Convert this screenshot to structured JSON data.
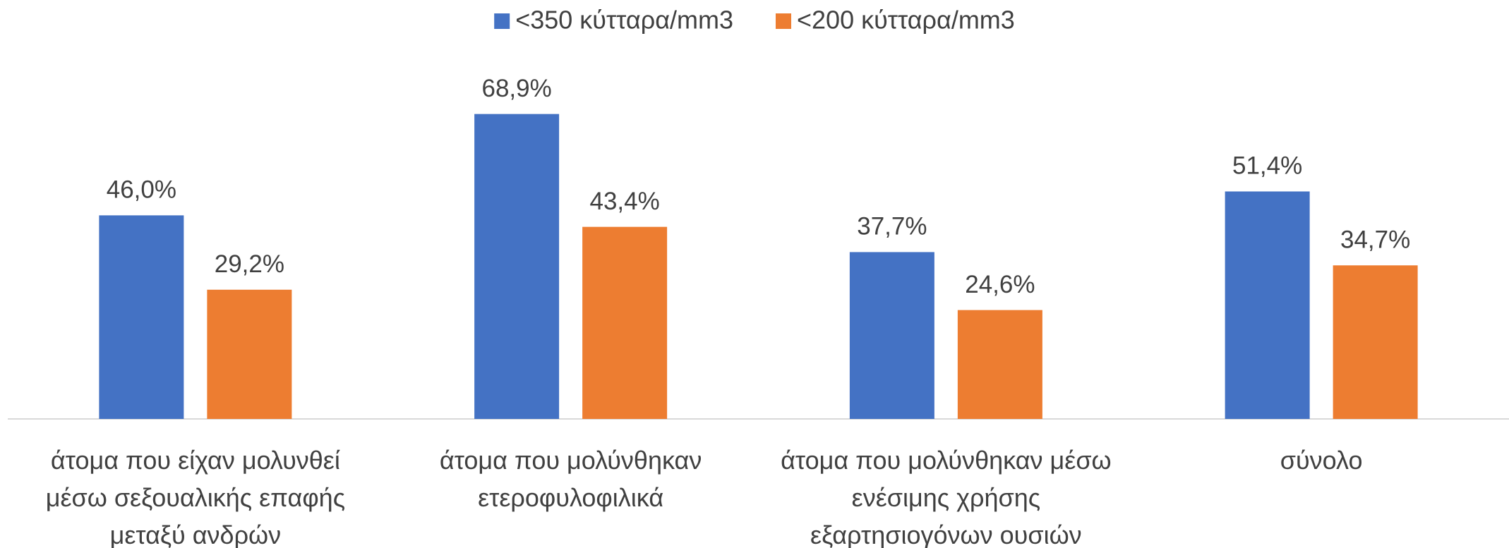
{
  "chart_data": {
    "type": "bar",
    "categories": [
      "άτομα που είχαν μολυνθεί μέσω σεξουαλικής επαφής μεταξύ ανδρών",
      "άτομα που μολύνθηκαν ετεροφυλοφιλικά",
      "άτομα που μολύνθηκαν μέσω ενέσιμης χρήσης εξαρτησιογόνων  ουσιών",
      "σύνολο"
    ],
    "series": [
      {
        "name": "<350 κύτταρα/mm3",
        "color": "#4472c4",
        "values": [
          46.0,
          68.9,
          37.7,
          51.4
        ],
        "value_labels": [
          "46,0%",
          "68,9%",
          "37,7%",
          "51,4%"
        ]
      },
      {
        "name": "<200 κύτταρα/mm3",
        "color": "#ed7d31",
        "values": [
          29.2,
          43.4,
          24.6,
          34.7
        ],
        "value_labels": [
          "29,2%",
          "43,4%",
          "24,6%",
          "34,7%"
        ]
      }
    ],
    "ylim": [
      0,
      80
    ],
    "legend": "top"
  }
}
